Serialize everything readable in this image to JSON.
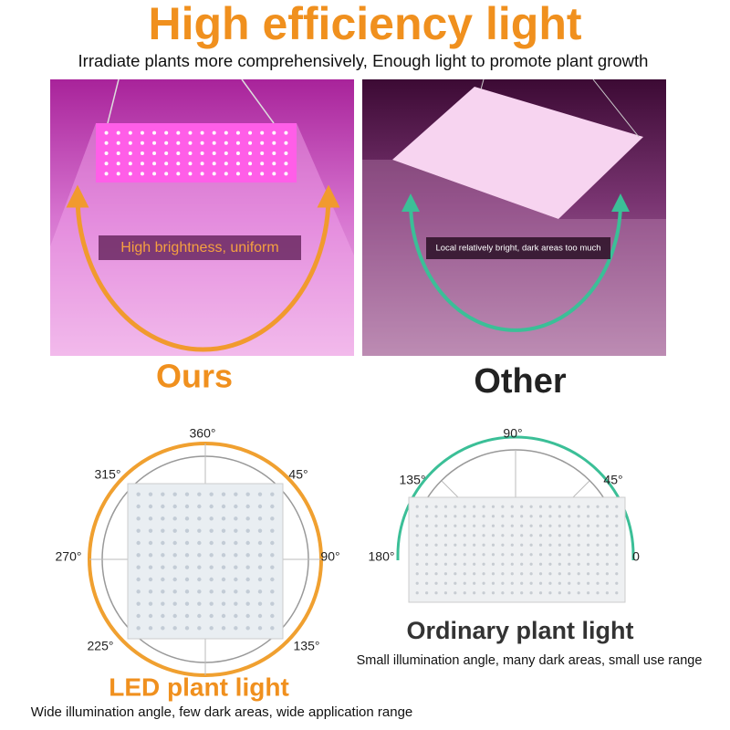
{
  "header": {
    "title": "High efficiency light",
    "subtitle": "Irradiate plants more comprehensively, Enough light to promote plant growth"
  },
  "comparison": {
    "ours": {
      "label": "Ours",
      "note": "High brightness, uniform"
    },
    "other": {
      "label": "Other",
      "note": "Local relatively bright, dark areas too much"
    }
  },
  "diagrams": {
    "led": {
      "angles": [
        "360°",
        "315°",
        "45°",
        "270°",
        "90°",
        "225°",
        "135°"
      ],
      "title": "LED plant light",
      "caption": "Wide illumination angle, few dark areas, wide application range"
    },
    "ordinary": {
      "angles": [
        "90°",
        "135°",
        "45°",
        "180°",
        "0"
      ],
      "title": "Ordinary plant light",
      "caption": "Small illumination angle, many dark areas, small use range"
    }
  }
}
